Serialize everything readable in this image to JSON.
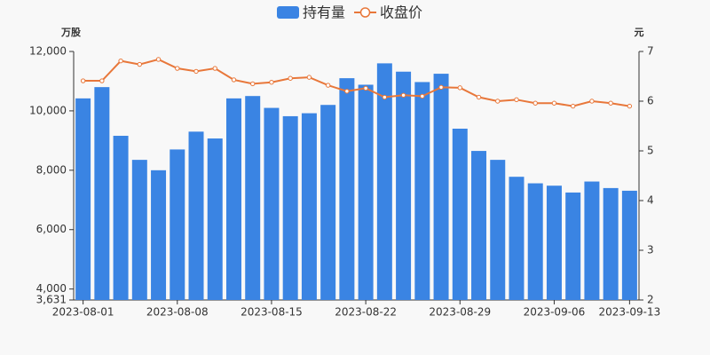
{
  "chart_data": {
    "type": "bar_line",
    "categories": [
      "2023-08-01",
      null,
      null,
      null,
      null,
      "2023-08-08",
      null,
      null,
      null,
      null,
      "2023-08-15",
      null,
      null,
      null,
      null,
      "2023-08-22",
      null,
      null,
      null,
      null,
      "2023-08-29",
      null,
      null,
      null,
      null,
      "2023-09-06",
      null,
      null,
      null,
      "2023-09-13"
    ],
    "series": [
      {
        "name": "持有量",
        "color": "#3a84e3",
        "kind": "bar",
        "axis": "y",
        "values": [
          10420,
          10800,
          9160,
          8350,
          8000,
          8700,
          9300,
          9070,
          10420,
          10500,
          10100,
          9820,
          9920,
          10200,
          11100,
          10880,
          11600,
          11320,
          10970,
          11250,
          9400,
          8650,
          8350,
          7780,
          7560,
          7480,
          7250,
          7620,
          7400,
          7310
        ]
      },
      {
        "name": "收盘价",
        "color": "#e8773a",
        "kind": "line",
        "axis": "y2",
        "values": [
          6.41,
          6.41,
          6.81,
          6.74,
          6.84,
          6.66,
          6.6,
          6.66,
          6.43,
          6.35,
          6.38,
          6.46,
          6.48,
          6.32,
          6.2,
          6.26,
          6.08,
          6.12,
          6.1,
          6.28,
          6.27,
          6.08,
          6.0,
          6.03,
          5.96,
          5.96,
          5.9,
          6.0,
          5.96,
          5.9
        ]
      }
    ],
    "y_label": "万股",
    "y2_label": "元",
    "ylim": [
      3631,
      12000
    ],
    "yticks": [
      {
        "value": 3631,
        "label": "3,631"
      },
      {
        "value": 4000,
        "label": "4,000"
      },
      {
        "value": 6000,
        "label": "6,000"
      },
      {
        "value": 8000,
        "label": "8,000"
      },
      {
        "value": 10000,
        "label": "10,000"
      },
      {
        "value": 12000,
        "label": "12,000"
      }
    ],
    "y2lim": [
      2,
      7
    ],
    "y2ticks": [
      2,
      3,
      4,
      5,
      6,
      7
    ],
    "legend": "top"
  }
}
